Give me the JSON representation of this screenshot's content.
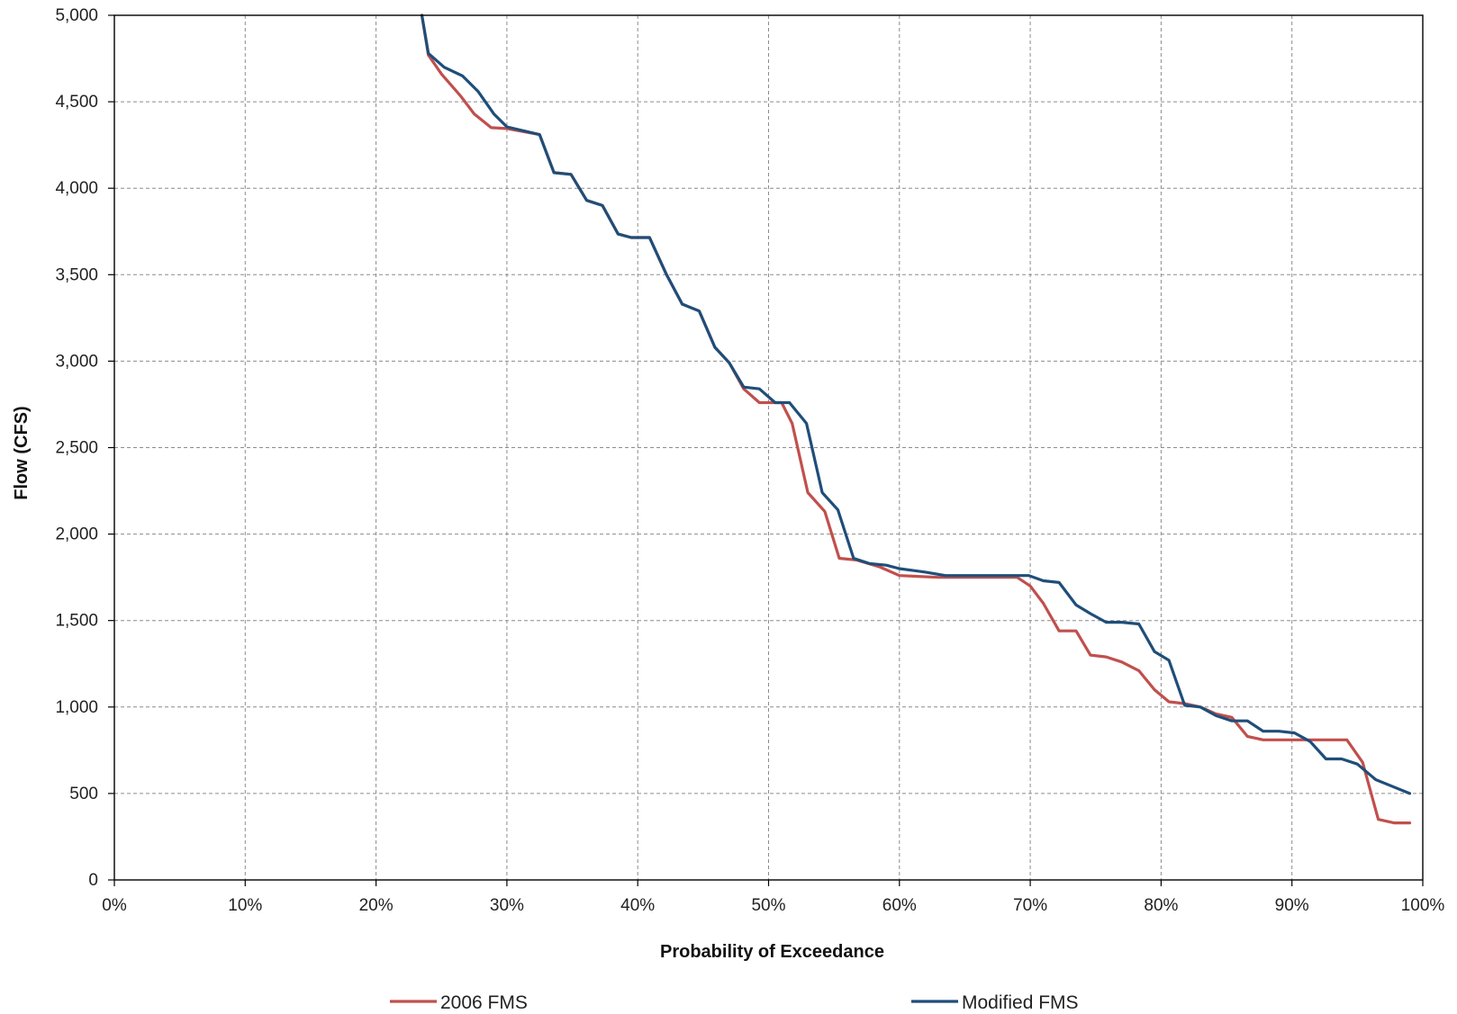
{
  "chart_data": {
    "type": "line",
    "title": "",
    "xlabel": "Probability of Exceedance",
    "ylabel": "Flow (CFS)",
    "xlim": [
      0,
      100
    ],
    "ylim": [
      0,
      5000
    ],
    "x_ticks": [
      "0%",
      "10%",
      "20%",
      "30%",
      "40%",
      "50%",
      "60%",
      "70%",
      "80%",
      "90%",
      "100%"
    ],
    "y_ticks": [
      "0",
      "500",
      "1,000",
      "1,500",
      "2,000",
      "2,500",
      "3,000",
      "3,500",
      "4,000",
      "4,500",
      "5,000"
    ],
    "grid": true,
    "legend_position": "bottom",
    "series": [
      {
        "name": "2006 FMS",
        "color": "#c0504d",
        "points": [
          [
            23.5,
            5000
          ],
          [
            24.0,
            4770
          ],
          [
            25.0,
            4660
          ],
          [
            26.5,
            4530
          ],
          [
            27.5,
            4430
          ],
          [
            28.8,
            4350
          ],
          [
            30.0,
            4345
          ],
          [
            32.5,
            4310
          ],
          [
            33.6,
            4090
          ],
          [
            34.9,
            4080
          ],
          [
            36.1,
            3930
          ],
          [
            37.3,
            3900
          ],
          [
            38.5,
            3735
          ],
          [
            39.5,
            3715
          ],
          [
            40.9,
            3715
          ],
          [
            42.2,
            3500
          ],
          [
            43.4,
            3330
          ],
          [
            44.7,
            3290
          ],
          [
            45.9,
            3080
          ],
          [
            47.0,
            2990
          ],
          [
            48.1,
            2840
          ],
          [
            49.3,
            2760
          ],
          [
            50.5,
            2760
          ],
          [
            51.0,
            2760
          ],
          [
            51.8,
            2640
          ],
          [
            53.0,
            2240
          ],
          [
            54.3,
            2130
          ],
          [
            55.4,
            1860
          ],
          [
            56.7,
            1850
          ],
          [
            58.5,
            1810
          ],
          [
            60.0,
            1760
          ],
          [
            63.0,
            1750
          ],
          [
            68.0,
            1750
          ],
          [
            69.0,
            1750
          ],
          [
            70.0,
            1700
          ],
          [
            71.0,
            1600
          ],
          [
            72.2,
            1440
          ],
          [
            73.5,
            1440
          ],
          [
            74.6,
            1300
          ],
          [
            75.8,
            1290
          ],
          [
            77.0,
            1260
          ],
          [
            78.3,
            1210
          ],
          [
            79.5,
            1100
          ],
          [
            80.6,
            1030
          ],
          [
            81.8,
            1020
          ],
          [
            83.0,
            1000
          ],
          [
            84.2,
            960
          ],
          [
            85.4,
            940
          ],
          [
            86.6,
            830
          ],
          [
            87.8,
            810
          ],
          [
            90.0,
            810
          ],
          [
            91.5,
            810
          ],
          [
            93.0,
            810
          ],
          [
            94.2,
            810
          ],
          [
            95.4,
            680
          ],
          [
            96.6,
            350
          ],
          [
            97.8,
            330
          ],
          [
            99.0,
            330
          ]
        ]
      },
      {
        "name": "Modified FMS",
        "color": "#1f4e79",
        "points": [
          [
            23.5,
            5000
          ],
          [
            24.0,
            4780
          ],
          [
            25.2,
            4700
          ],
          [
            26.6,
            4650
          ],
          [
            27.8,
            4560
          ],
          [
            29.0,
            4430
          ],
          [
            30.0,
            4355
          ],
          [
            32.5,
            4310
          ],
          [
            33.6,
            4090
          ],
          [
            34.9,
            4080
          ],
          [
            36.1,
            3930
          ],
          [
            37.3,
            3900
          ],
          [
            38.5,
            3735
          ],
          [
            39.5,
            3715
          ],
          [
            40.9,
            3715
          ],
          [
            42.2,
            3500
          ],
          [
            43.4,
            3330
          ],
          [
            44.7,
            3290
          ],
          [
            45.9,
            3080
          ],
          [
            47.0,
            2990
          ],
          [
            48.1,
            2850
          ],
          [
            49.3,
            2840
          ],
          [
            50.5,
            2760
          ],
          [
            51.6,
            2760
          ],
          [
            52.9,
            2640
          ],
          [
            54.1,
            2240
          ],
          [
            55.3,
            2140
          ],
          [
            56.5,
            1860
          ],
          [
            57.7,
            1830
          ],
          [
            59.0,
            1820
          ],
          [
            60.0,
            1800
          ],
          [
            62.0,
            1780
          ],
          [
            63.5,
            1760
          ],
          [
            66.0,
            1760
          ],
          [
            69.9,
            1760
          ],
          [
            71.0,
            1730
          ],
          [
            72.2,
            1720
          ],
          [
            73.5,
            1590
          ],
          [
            74.6,
            1540
          ],
          [
            75.8,
            1490
          ],
          [
            77.0,
            1490
          ],
          [
            78.3,
            1480
          ],
          [
            79.5,
            1320
          ],
          [
            80.6,
            1270
          ],
          [
            81.8,
            1010
          ],
          [
            83.0,
            1000
          ],
          [
            84.2,
            950
          ],
          [
            85.4,
            920
          ],
          [
            86.6,
            920
          ],
          [
            87.8,
            860
          ],
          [
            89.0,
            860
          ],
          [
            90.2,
            850
          ],
          [
            91.4,
            800
          ],
          [
            92.6,
            700
          ],
          [
            93.8,
            700
          ],
          [
            95.0,
            670
          ],
          [
            96.4,
            580
          ],
          [
            97.7,
            540
          ],
          [
            99.0,
            500
          ]
        ]
      }
    ]
  }
}
